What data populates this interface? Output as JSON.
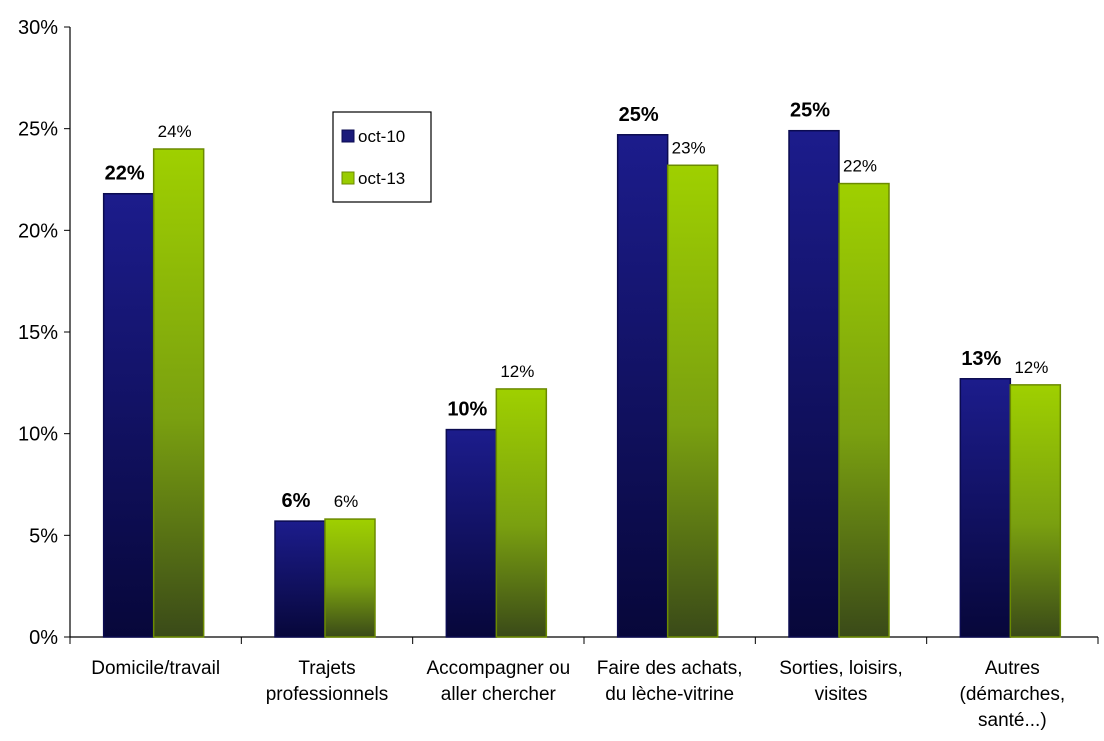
{
  "chart_data": {
    "type": "bar",
    "categories": [
      [
        "Domicile/travail"
      ],
      [
        "Trajets",
        "professionnels"
      ],
      [
        "Accompagner ou",
        "aller chercher"
      ],
      [
        "Faire des achats,",
        "du lèche-vitrine"
      ],
      [
        "Sorties, loisirs,",
        "visites"
      ],
      [
        "Autres",
        "(démarches,",
        "santé...)"
      ]
    ],
    "series": [
      {
        "name": "oct-10",
        "values": [
          21.8,
          5.7,
          10.2,
          24.7,
          24.9,
          12.7
        ],
        "labels": [
          "22%",
          "6%",
          "10%",
          "25%",
          "25%",
          "13%"
        ],
        "color": "#1a1a7a"
      },
      {
        "name": "oct-13",
        "values": [
          24.0,
          5.8,
          12.2,
          23.2,
          22.3,
          12.4
        ],
        "labels": [
          "24%",
          "6%",
          "12%",
          "23%",
          "22%",
          "12%"
        ],
        "color": "#99cc00"
      }
    ],
    "ylim": [
      0,
      30
    ],
    "yticks": [
      {
        "v": 0,
        "label": "0%"
      },
      {
        "v": 5,
        "label": "5%"
      },
      {
        "v": 10,
        "label": "10%"
      },
      {
        "v": 15,
        "label": "15%"
      },
      {
        "v": 20,
        "label": "20%"
      },
      {
        "v": 25,
        "label": "25%"
      },
      {
        "v": 30,
        "label": "30%"
      }
    ],
    "grid": false,
    "legend": {
      "placement": "top-center"
    }
  }
}
